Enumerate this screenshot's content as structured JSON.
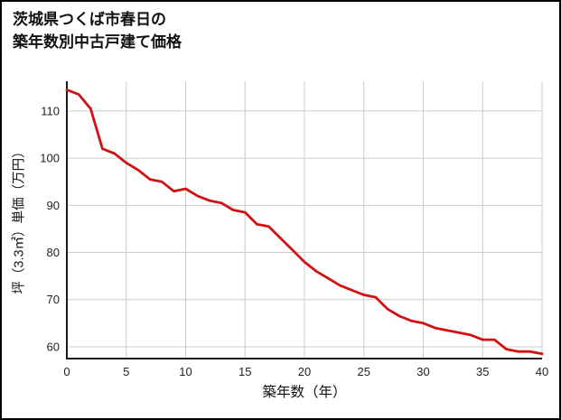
{
  "title": {
    "line1": "茨城県つくば市春日の",
    "line2": "築年数別中古戸建て価格"
  },
  "chart_data": {
    "type": "line",
    "title": "茨城県つくば市春日の築年数別中古戸建て価格",
    "xlabel": "築年数（年）",
    "ylabel": "坪（3.3㎡）単価（万円）",
    "x": [
      0,
      1,
      2,
      3,
      4,
      5,
      6,
      7,
      8,
      9,
      10,
      11,
      12,
      13,
      14,
      15,
      16,
      17,
      18,
      19,
      20,
      21,
      22,
      23,
      24,
      25,
      26,
      27,
      28,
      29,
      30,
      31,
      32,
      33,
      34,
      35,
      36,
      37,
      38,
      39,
      40
    ],
    "values": [
      114.5,
      113.5,
      110.5,
      102,
      101,
      99,
      97.5,
      95.5,
      95,
      93,
      93.5,
      92,
      91,
      90.5,
      89,
      88.5,
      86,
      85.5,
      83,
      80.5,
      78,
      76,
      74.5,
      73,
      72,
      71,
      70.5,
      68,
      66.5,
      65.5,
      65,
      64,
      63.5,
      63,
      62.5,
      61.5,
      61.5,
      59.5,
      59,
      59,
      58.5
    ],
    "xticks": [
      0,
      5,
      10,
      15,
      20,
      25,
      30,
      35,
      40
    ],
    "yticks": [
      60,
      70,
      80,
      90,
      100,
      110
    ],
    "xlim": [
      0,
      40
    ],
    "ylim": [
      57.5,
      116.3
    ],
    "grid": true,
    "legend": "none",
    "line_color": "#d01212",
    "grid_color": "#cccccc",
    "axis_color": "#1a1a1a",
    "tick_color": "#222222"
  }
}
